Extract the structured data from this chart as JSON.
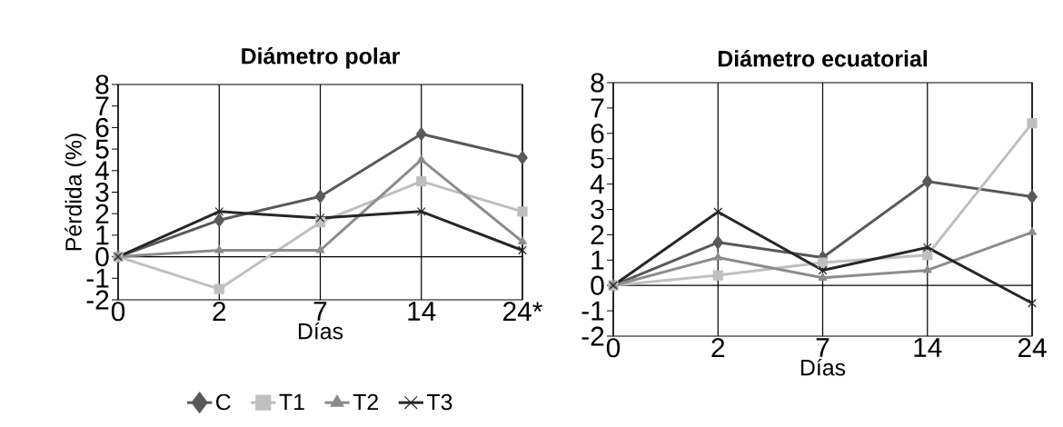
{
  "chart_data": [
    {
      "type": "line",
      "title": "Diámetro polar",
      "xlabel": "Días",
      "ylabel": "Pérdida (%)",
      "categories": [
        "0",
        "2",
        "7",
        "14",
        "24*"
      ],
      "ylim": [
        -2,
        8
      ],
      "yticks": [
        -2,
        -1,
        0,
        1,
        2,
        3,
        4,
        5,
        6,
        7,
        8
      ],
      "grid": "x",
      "legend": "bottom",
      "ref_lines": [
        {
          "axis": "y",
          "value": 0
        }
      ],
      "series": [
        {
          "name": "C",
          "color": "#595959",
          "marker": "diamond",
          "values": [
            0,
            1.7,
            2.8,
            5.7,
            4.6
          ]
        },
        {
          "name": "T1",
          "color": "#bfbfbf",
          "marker": "square",
          "values": [
            0,
            -1.5,
            1.6,
            3.5,
            2.1
          ]
        },
        {
          "name": "T2",
          "color": "#8c8c8c",
          "marker": "triangle",
          "values": [
            0,
            0.3,
            0.3,
            4.5,
            0.7
          ]
        },
        {
          "name": "T3",
          "color": "#262626",
          "marker": "cross",
          "values": [
            0,
            2.1,
            1.8,
            2.1,
            0.3
          ]
        }
      ]
    },
    {
      "type": "line",
      "title": "Diámetro ecuatorial",
      "xlabel": "Días",
      "categories": [
        "0",
        "2",
        "7",
        "14",
        "24"
      ],
      "ylim": [
        -2,
        8
      ],
      "yticks": [
        -2,
        -1,
        0,
        1,
        2,
        3,
        4,
        5,
        6,
        7,
        8
      ],
      "grid": "x",
      "ref_lines": [
        {
          "axis": "y",
          "value": 0
        }
      ],
      "series": [
        {
          "color": "#595959",
          "marker": "diamond",
          "values": [
            0,
            1.7,
            1.1,
            4.1,
            3.5
          ]
        },
        {
          "color": "#bfbfbf",
          "marker": "square",
          "values": [
            0,
            0.4,
            0.9,
            1.2,
            6.4
          ]
        },
        {
          "color": "#8c8c8c",
          "marker": "triangle",
          "values": [
            0,
            1.1,
            0.3,
            0.6,
            2.1
          ]
        },
        {
          "color": "#262626",
          "marker": "cross",
          "values": [
            0,
            2.9,
            0.6,
            1.5,
            -0.7
          ]
        }
      ]
    }
  ]
}
